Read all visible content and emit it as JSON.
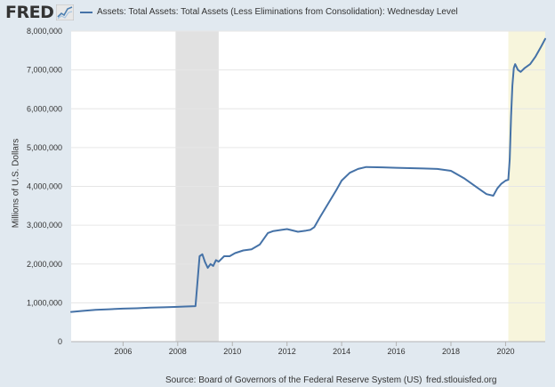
{
  "header": {
    "logo_text": "FRED",
    "legend_label": "Assets: Total Assets: Total Assets (Less Eliminations from Consolidation): Wednesday Level"
  },
  "footer": {
    "source": "Source: Board of Governors of the Federal Reserve System (US)",
    "url": "fred.stlouisfed.org"
  },
  "colors": {
    "page_bg": "#e1e9f0",
    "plot_bg": "#ffffff",
    "series": "#4572a7",
    "recession_2008": "#e1e1e1",
    "recession_2020": "#f7f5dc",
    "text": "#333333",
    "grid": "#e6e6e6"
  },
  "chart_data": {
    "type": "line",
    "title": "",
    "xlabel": "",
    "ylabel": "Millions of U.S. Dollars",
    "xlim": [
      2004.1,
      2021.45
    ],
    "ylim": [
      0,
      8000000
    ],
    "grid": true,
    "legend": "top",
    "x_tick_labels": [
      {
        "value": 2006,
        "label": "2006"
      },
      {
        "value": 2008,
        "label": "2008"
      },
      {
        "value": 2010,
        "label": "2010"
      },
      {
        "value": 2012,
        "label": "2012"
      },
      {
        "value": 2014,
        "label": "2014"
      },
      {
        "value": 2016,
        "label": "2016"
      },
      {
        "value": 2018,
        "label": "2018"
      },
      {
        "value": 2020,
        "label": "2020"
      }
    ],
    "y_tick_labels": [
      {
        "value": 0,
        "label": "0"
      },
      {
        "value": 1000000,
        "label": "1,000,000"
      },
      {
        "value": 2000000,
        "label": "2,000,000"
      },
      {
        "value": 3000000,
        "label": "3,000,000"
      },
      {
        "value": 4000000,
        "label": "4,000,000"
      },
      {
        "value": 5000000,
        "label": "5,000,000"
      },
      {
        "value": 6000000,
        "label": "6,000,000"
      },
      {
        "value": 7000000,
        "label": "7,000,000"
      },
      {
        "value": 8000000,
        "label": "8,000,000"
      }
    ],
    "recessions": [
      {
        "start": 2007.92,
        "end": 2009.5
      },
      {
        "start": 2020.1,
        "end": 2021.45
      }
    ],
    "series": [
      {
        "name": "Assets: Total Assets: Total Assets (Less Eliminations from Consolidation): Wednesday Level",
        "x": [
          2004.1,
          2004.5,
          2005.0,
          2005.5,
          2006.0,
          2006.5,
          2007.0,
          2007.5,
          2007.9,
          2008.3,
          2008.65,
          2008.72,
          2008.8,
          2008.9,
          2009.0,
          2009.1,
          2009.2,
          2009.3,
          2009.4,
          2009.5,
          2009.7,
          2009.9,
          2010.1,
          2010.4,
          2010.7,
          2011.0,
          2011.3,
          2011.5,
          2011.8,
          2012.0,
          2012.4,
          2012.7,
          2012.85,
          2013.0,
          2013.2,
          2013.5,
          2013.8,
          2014.0,
          2014.3,
          2014.6,
          2014.9,
          2015.5,
          2016.0,
          2016.5,
          2017.0,
          2017.5,
          2018.0,
          2018.5,
          2019.0,
          2019.3,
          2019.55,
          2019.7,
          2019.85,
          2020.0,
          2020.1,
          2020.15,
          2020.2,
          2020.25,
          2020.3,
          2020.35,
          2020.45,
          2020.55,
          2020.7,
          2020.9,
          2021.1,
          2021.3,
          2021.45
        ],
        "values": [
          765000,
          790000,
          820000,
          835000,
          850000,
          860000,
          875000,
          885000,
          895000,
          905000,
          915000,
          1500000,
          2200000,
          2250000,
          2050000,
          1900000,
          2000000,
          1950000,
          2100000,
          2060000,
          2200000,
          2200000,
          2280000,
          2350000,
          2380000,
          2500000,
          2800000,
          2850000,
          2880000,
          2900000,
          2830000,
          2860000,
          2880000,
          2950000,
          3200000,
          3550000,
          3900000,
          4150000,
          4350000,
          4450000,
          4500000,
          4490000,
          4480000,
          4470000,
          4460000,
          4450000,
          4400000,
          4200000,
          3950000,
          3800000,
          3760000,
          3950000,
          4070000,
          4150000,
          4170000,
          4700000,
          5800000,
          6600000,
          7050000,
          7150000,
          7000000,
          6950000,
          7050000,
          7150000,
          7350000,
          7600000,
          7800000
        ]
      }
    ]
  }
}
